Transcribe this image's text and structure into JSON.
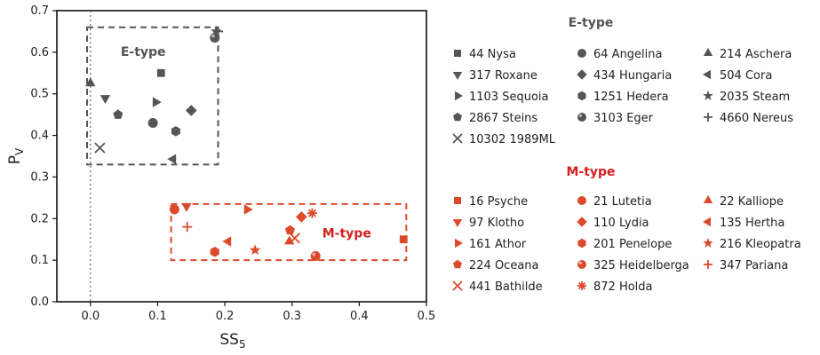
{
  "chart_data": {
    "type": "scatter",
    "xlabel": "SS",
    "xlabel_sub": "5",
    "ylabel": "P",
    "ylabel_sub": "V",
    "xlim": [
      -0.05,
      0.5
    ],
    "ylim": [
      0,
      0.7
    ],
    "xticks": [
      "0.0",
      "0.1",
      "0.2",
      "0.3",
      "0.4",
      "0.5"
    ],
    "xtick_values": [
      0,
      0.1,
      0.2,
      0.3,
      0.4,
      0.5
    ],
    "yticks": [
      "0.0",
      "0.1",
      "0.2",
      "0.3",
      "0.4",
      "0.5",
      "0.6",
      "0.7"
    ],
    "ytick_values": [
      0,
      0.1,
      0.2,
      0.3,
      0.4,
      0.5,
      0.6,
      0.7
    ],
    "reference_line_x": 0,
    "legend_position": "right",
    "groups": [
      {
        "name": "E-type",
        "color": "#555555",
        "title_color": "#555555",
        "box": {
          "x": [
            -0.005,
            0.19
          ],
          "y": [
            0.33,
            0.66
          ]
        },
        "box_label": "E-type",
        "series": [
          {
            "name": "44 Nysa",
            "marker": "square",
            "x": 0.105,
            "y": 0.55
          },
          {
            "name": "64 Angelina",
            "marker": "circle",
            "x": 0.093,
            "y": 0.43
          },
          {
            "name": "214 Aschera",
            "marker": "triangle-up",
            "x": 0.0,
            "y": 0.525
          },
          {
            "name": "317 Roxane",
            "marker": "triangle-down",
            "x": 0.022,
            "y": 0.49
          },
          {
            "name": "434 Hungaria",
            "marker": "diamond",
            "x": 0.15,
            "y": 0.46
          },
          {
            "name": "504 Cora",
            "marker": "triangle-left",
            "x": 0.123,
            "y": 0.343
          },
          {
            "name": "1103 Sequoia",
            "marker": "triangle-right",
            "x": 0.097,
            "y": 0.48
          },
          {
            "name": "1251 Hedera",
            "marker": "hexagon",
            "x": 0.127,
            "y": 0.41
          },
          {
            "name": "2035 Steam",
            "marker": "star",
            "x": 0.187,
            "y": 0.65
          },
          {
            "name": "2867 Steins",
            "marker": "pentagon",
            "x": 0.041,
            "y": 0.45
          },
          {
            "name": "3103 Eger",
            "marker": "sphere",
            "x": 0.185,
            "y": 0.635
          },
          {
            "name": "4660 Nereus",
            "marker": "plus",
            "x": 0.19,
            "y": 0.65
          },
          {
            "name": "10302 1989ML",
            "marker": "x",
            "x": 0.014,
            "y": 0.37
          }
        ]
      },
      {
        "name": "M-type",
        "color": "#dc4a2c",
        "title_color": "#d42222",
        "box": {
          "x": [
            0.12,
            0.47
          ],
          "y": [
            0.1,
            0.235
          ]
        },
        "box_label": "M-type",
        "series": [
          {
            "name": "16 Psyche",
            "marker": "square",
            "x": 0.466,
            "y": 0.15
          },
          {
            "name": "21 Lutetia",
            "marker": "circle",
            "x": 0.125,
            "y": 0.222
          },
          {
            "name": "22 Kalliope",
            "marker": "triangle-up",
            "x": 0.296,
            "y": 0.145
          },
          {
            "name": "97 Klotho",
            "marker": "triangle-down",
            "x": 0.143,
            "y": 0.23
          },
          {
            "name": "110 Lydia",
            "marker": "diamond",
            "x": 0.314,
            "y": 0.204
          },
          {
            "name": "135 Hertha",
            "marker": "triangle-left",
            "x": 0.205,
            "y": 0.145
          },
          {
            "name": "161 Athor",
            "marker": "triangle-right",
            "x": 0.233,
            "y": 0.222
          },
          {
            "name": "201 Penelope",
            "marker": "hexagon",
            "x": 0.185,
            "y": 0.12
          },
          {
            "name": "216 Kleopatra",
            "marker": "star",
            "x": 0.245,
            "y": 0.124
          },
          {
            "name": "224 Oceana",
            "marker": "pentagon",
            "x": 0.297,
            "y": 0.172
          },
          {
            "name": "325 Heidelberga",
            "marker": "sphere",
            "x": 0.335,
            "y": 0.11
          },
          {
            "name": "347 Pariana",
            "marker": "plus",
            "x": 0.144,
            "y": 0.18
          },
          {
            "name": "441 Bathilde",
            "marker": "x",
            "x": 0.304,
            "y": 0.153
          },
          {
            "name": "872 Holda",
            "marker": "asterisk",
            "x": 0.33,
            "y": 0.213
          }
        ]
      }
    ]
  }
}
